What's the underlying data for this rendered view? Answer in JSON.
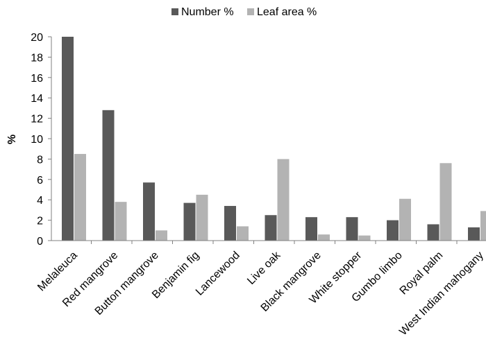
{
  "chart_data": {
    "type": "bar",
    "title": "",
    "xlabel": "",
    "ylabel": "%",
    "ylim": [
      0,
      20
    ],
    "yticks": [
      0,
      2,
      4,
      6,
      8,
      10,
      12,
      14,
      16,
      18,
      20
    ],
    "grid": false,
    "legend_position": "top-center",
    "categories": [
      "Melaleuca",
      "Red mangrove",
      "Button mangrove",
      "Benjamin fig",
      "Lancewood",
      "Live oak",
      "Black mangrove",
      "White stopper",
      "Gumbo limbo",
      "Royal palm",
      "West Indian mahogany"
    ],
    "series": [
      {
        "name": "Number %",
        "color": "#595959",
        "values": [
          20.0,
          12.8,
          5.7,
          3.7,
          3.4,
          2.5,
          2.3,
          2.3,
          2.0,
          1.6,
          1.3
        ]
      },
      {
        "name": "Leaf area %",
        "color": "#b3b3b3",
        "values": [
          8.5,
          3.8,
          1.0,
          4.5,
          1.4,
          8.0,
          0.6,
          0.5,
          4.1,
          7.6,
          2.9
        ]
      }
    ]
  }
}
